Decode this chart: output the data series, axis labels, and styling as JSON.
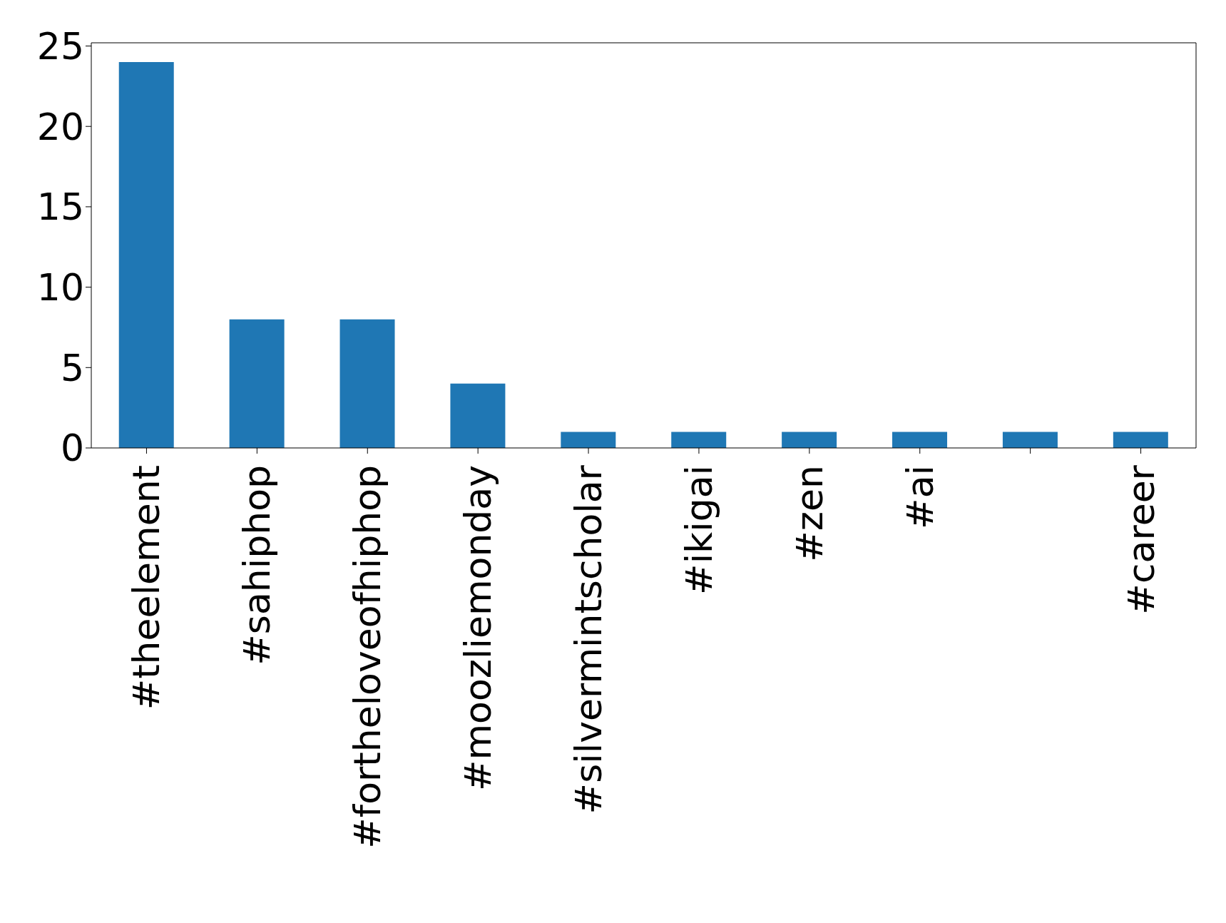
{
  "chart_data": {
    "type": "bar",
    "categories": [
      "#theelement",
      "#sahiphop",
      "#fortheloveofhiphop",
      "#moozliemonday",
      "#silvermintscholar",
      "#ikigai",
      "#zen",
      "#ai",
      null,
      "#career"
    ],
    "values": [
      24,
      8,
      8,
      4,
      1,
      1,
      1,
      1,
      1,
      1
    ],
    "color": "#1f77b4",
    "ylim": [
      0,
      25.2
    ],
    "yticks": [
      0,
      5,
      10,
      15,
      20,
      25
    ],
    "grid": false
  }
}
